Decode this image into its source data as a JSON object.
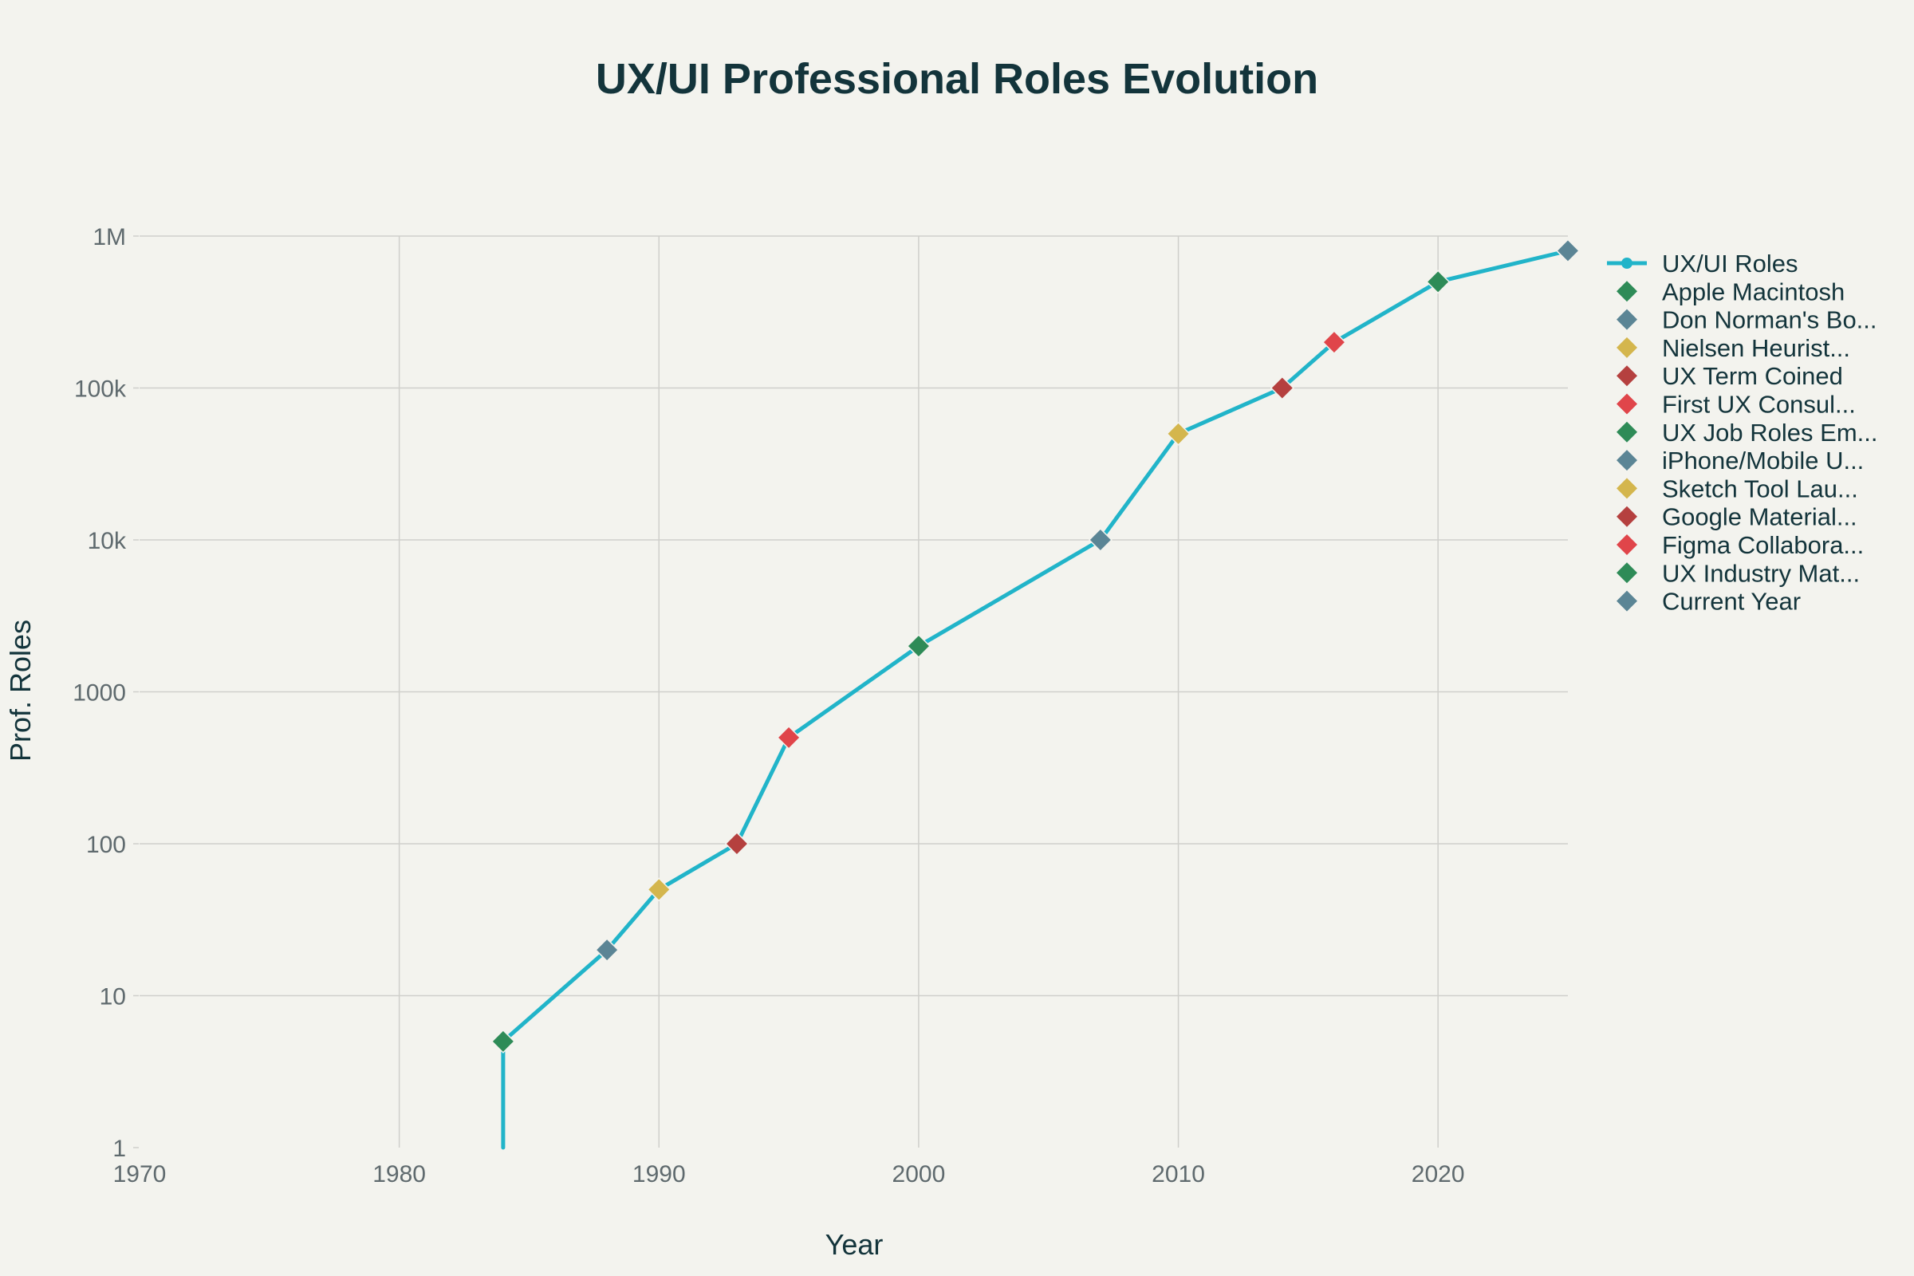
{
  "chart_data": {
    "type": "line",
    "title": "UX/UI Professional Roles Evolution",
    "xlabel": "Year",
    "ylabel": "Prof. Roles",
    "y_scale": "log",
    "xlim": [
      1970,
      2025
    ],
    "ylim": [
      1,
      1000000
    ],
    "x_ticks": [
      1970,
      1980,
      1990,
      2000,
      2010,
      2020
    ],
    "x_tick_labels": [
      "1970",
      "1980",
      "1990",
      "2000",
      "2010",
      "2020"
    ],
    "y_ticks": [
      1,
      10,
      100,
      1000,
      10000,
      100000,
      1000000
    ],
    "y_tick_labels": [
      "1",
      "10",
      "100",
      "1000",
      "10k",
      "100k",
      "1M"
    ],
    "grid": true,
    "legend_position": "right",
    "series": [
      {
        "name": "UX/UI Roles",
        "color": "#21b4c9",
        "x": [
          1984,
          1984,
          1988,
          1990,
          1993,
          1995,
          2000,
          2007,
          2010,
          2014,
          2016,
          2020,
          2025
        ],
        "y": [
          1,
          5,
          20,
          50,
          100,
          500,
          2000,
          10000,
          50000,
          100000,
          200000,
          500000,
          800000
        ]
      }
    ],
    "milestones": [
      {
        "name": "Apple Macintosh",
        "legend_label": "Apple Macintosh",
        "x": 1984,
        "y": 5,
        "color": "#2e8b57"
      },
      {
        "name": "Don Norman's Book",
        "legend_label": "Don Norman's Bo...",
        "x": 1988,
        "y": 20,
        "color": "#5b8595"
      },
      {
        "name": "Nielsen Heuristics",
        "legend_label": "Nielsen Heurist...",
        "x": 1990,
        "y": 50,
        "color": "#d4b64d"
      },
      {
        "name": "UX Term Coined",
        "legend_label": "UX Term Coined",
        "x": 1993,
        "y": 100,
        "color": "#b5403f"
      },
      {
        "name": "First UX Consultancy",
        "legend_label": "First UX Consul...",
        "x": 1995,
        "y": 500,
        "color": "#e0454a"
      },
      {
        "name": "UX Job Roles Emerge",
        "legend_label": "UX Job Roles Em...",
        "x": 2000,
        "y": 2000,
        "color": "#2e8b57"
      },
      {
        "name": "iPhone/Mobile UX",
        "legend_label": "iPhone/Mobile U...",
        "x": 2007,
        "y": 10000,
        "color": "#5b8595"
      },
      {
        "name": "Sketch Tool Launch",
        "legend_label": "Sketch Tool Lau...",
        "x": 2010,
        "y": 50000,
        "color": "#d4b64d"
      },
      {
        "name": "Google Material Design",
        "legend_label": "Google Material...",
        "x": 2014,
        "y": 100000,
        "color": "#b5403f"
      },
      {
        "name": "Figma Collaboration",
        "legend_label": "Figma Collabora...",
        "x": 2016,
        "y": 200000,
        "color": "#e0454a"
      },
      {
        "name": "UX Industry Maturity",
        "legend_label": "UX Industry Mat...",
        "x": 2020,
        "y": 500000,
        "color": "#2e8b57"
      },
      {
        "name": "Current Year",
        "legend_label": "Current Year",
        "x": 2025,
        "y": 800000,
        "color": "#5b8595"
      }
    ]
  }
}
